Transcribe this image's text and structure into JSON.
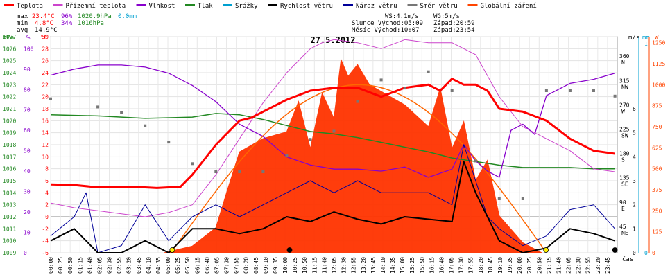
{
  "chart_data": {
    "type": "line",
    "title": "27.5.2012",
    "legend": [
      {
        "label": "Teplota",
        "color": "#ff0000"
      },
      {
        "label": "Přízemní teplota",
        "color": "#cc44cc"
      },
      {
        "label": "Vlhkost",
        "color": "#8800cc"
      },
      {
        "label": "Tlak",
        "color": "#228822"
      },
      {
        "label": "Srážky",
        "color": "#00a0d0"
      },
      {
        "label": "Rychlost větru",
        "color": "#000000"
      },
      {
        "label": "Náraz větru",
        "color": "#000099"
      },
      {
        "label": "Směr větru",
        "color": "#777777"
      },
      {
        "label": "Globální záření",
        "color": "#ff4400"
      }
    ],
    "stats": {
      "max": {
        "label": "max",
        "temp": "23.4°C",
        "hum": "96%",
        "press": "1020.9hPa",
        "rain": "0.0mm"
      },
      "min": {
        "label": "min",
        "temp": "4.8°C",
        "hum": "34%",
        "press": "1016hPa"
      },
      "avg": {
        "label": "avg",
        "temp": "14.9°C"
      }
    },
    "info": {
      "ws": "WS:4.1m/s",
      "wg": "WG:5m/s",
      "sun": "Slunce Východ:05:09",
      "sunset": "Západ:20:59",
      "moon": "Měsíc Východ:10:07",
      "moonset": "Západ:23:54"
    },
    "axes": {
      "hpa": {
        "label": "hPa",
        "ticks": [
          1027,
          1026,
          1025,
          1024,
          1023,
          1022,
          1021,
          1020,
          1019,
          1018,
          1017,
          1016,
          1015,
          1014,
          1013,
          1012,
          1011,
          1010,
          1009
        ]
      },
      "pct": {
        "label": "%",
        "ticks": [
          100,
          90,
          80,
          70,
          60,
          50,
          40,
          30,
          20,
          10,
          0
        ]
      },
      "temp": {
        "label": "°C",
        "ticks": [
          30,
          28,
          26,
          24,
          22,
          20,
          18,
          16,
          14,
          12,
          10,
          8,
          6,
          4,
          2,
          0,
          -2,
          -4,
          -6
        ]
      },
      "ms": {
        "label": "m/s",
        "ticks": [
          6,
          5,
          4,
          3,
          2,
          1,
          0
        ]
      },
      "mm": {
        "label": "mm",
        "ticks": [
          1,
          0
        ]
      },
      "w": {
        "label": "W",
        "ticks": [
          1250,
          1125,
          1000,
          875,
          750,
          625,
          500,
          375,
          250,
          125,
          0
        ]
      },
      "dir": {
        "ticks": [
          {
            "deg": "360",
            "lab": "N"
          },
          {
            "deg": "315",
            "lab": "NW"
          },
          {
            "deg": "270",
            "lab": "W"
          },
          {
            "deg": "225",
            "lab": "SW"
          },
          {
            "deg": "180",
            "lab": "S"
          },
          {
            "deg": "135",
            "lab": "SE"
          },
          {
            "deg": "90",
            "lab": "E"
          },
          {
            "deg": "45",
            "lab": "NE"
          }
        ]
      },
      "x_label": "čas",
      "x_ticks": [
        "00:00",
        "00:25",
        "00:50",
        "01:15",
        "01:40",
        "02:05",
        "02:30",
        "02:55",
        "03:20",
        "03:45",
        "04:10",
        "04:35",
        "05:00",
        "05:25",
        "05:50",
        "06:15",
        "06:40",
        "07:05",
        "07:30",
        "07:55",
        "08:20",
        "08:45",
        "09:10",
        "09:35",
        "10:00",
        "10:25",
        "10:50",
        "11:15",
        "11:40",
        "12:05",
        "12:30",
        "12:55",
        "13:20",
        "13:45",
        "14:10",
        "14:35",
        "15:00",
        "15:25",
        "15:50",
        "16:15",
        "16:40",
        "17:05",
        "17:30",
        "17:55",
        "18:20",
        "18:45",
        "19:10",
        "19:35",
        "20:00",
        "20:25",
        "20:50",
        "21:15",
        "21:40",
        "22:05",
        "22:30",
        "22:55",
        "23:20",
        "23:45"
      ]
    },
    "series": [
      {
        "name": "Teplota",
        "unit": "°C",
        "x_hours": [
          0,
          1,
          2,
          3,
          4,
          4.5,
          5,
          5.5,
          6,
          7,
          8,
          8.5,
          9,
          10,
          11,
          12,
          13,
          14,
          15,
          16,
          16.5,
          17,
          17.5,
          18,
          18.5,
          19,
          20,
          21,
          22,
          23,
          23.9
        ],
        "values": [
          5.4,
          5.3,
          4.9,
          4.9,
          4.9,
          4.8,
          4.9,
          5,
          7,
          12,
          16,
          16.5,
          17.5,
          19.5,
          21,
          21.5,
          21.5,
          20,
          21.5,
          22,
          21,
          23,
          22,
          22,
          21,
          18,
          17.5,
          16,
          13,
          11,
          10.5
        ]
      },
      {
        "name": "Přízemní teplota",
        "unit": "°C",
        "x_hours": [
          0,
          1,
          2,
          3,
          4,
          5,
          6,
          7,
          8,
          9,
          10,
          11,
          11.5,
          12,
          13,
          14,
          15,
          16,
          17,
          17.5,
          18,
          19,
          20,
          21,
          22,
          23,
          23.9
        ],
        "values": [
          2.3,
          1.5,
          1,
          0.5,
          0,
          0.7,
          2,
          7,
          13,
          19,
          24,
          28,
          29,
          29.5,
          29,
          28,
          29.5,
          29,
          29,
          28,
          27,
          20,
          15,
          13,
          11,
          8,
          7.5
        ]
      },
      {
        "name": "Vlhkost",
        "unit": "%",
        "x_hours": [
          0,
          1,
          2,
          3,
          4,
          5,
          6,
          7,
          8,
          9,
          10,
          11,
          12,
          13,
          14,
          15,
          16,
          17,
          17.5,
          18,
          18.5,
          19,
          19.5,
          20,
          20.5,
          21,
          22,
          23,
          23.9
        ],
        "values": [
          87,
          90,
          92,
          92,
          91,
          88,
          82,
          74,
          63,
          57,
          47,
          43,
          41,
          41,
          40,
          42,
          37,
          41,
          53,
          45,
          40,
          37,
          60,
          63,
          58,
          77,
          83,
          85,
          88
        ]
      },
      {
        "name": "Tlak",
        "unit": "hPa",
        "x_hours": [
          0,
          2,
          4,
          6,
          7,
          8,
          9,
          10,
          11,
          12,
          13,
          14,
          15,
          16,
          17,
          18,
          19,
          20,
          21,
          22,
          23,
          23.9
        ],
        "values": [
          1020.5,
          1020.4,
          1020.2,
          1020.3,
          1020.6,
          1020.5,
          1020.1,
          1019.6,
          1019.1,
          1018.9,
          1018.6,
          1018.2,
          1017.8,
          1017.4,
          1016.9,
          1016.6,
          1016.3,
          1016.1,
          1016.1,
          1016.1,
          1016,
          1016
        ]
      },
      {
        "name": "Rychlost větru",
        "unit": "m/s",
        "x_hours": [
          0,
          1,
          2,
          3,
          4,
          5,
          6,
          7,
          8,
          9,
          10,
          11,
          12,
          13,
          14,
          15,
          16,
          17,
          17.5,
          18,
          18.5,
          19,
          20,
          21,
          22,
          23,
          23.9
        ],
        "values": [
          0.5,
          1,
          0,
          0,
          0.5,
          0,
          1,
          1,
          0.8,
          1,
          1.5,
          1.3,
          1.7,
          1.4,
          1.2,
          1.5,
          1.4,
          1.3,
          3.8,
          2.5,
          1.5,
          0.5,
          0,
          0.2,
          1,
          0.8,
          0.5
        ]
      },
      {
        "name": "Náraz větru",
        "unit": "m/s",
        "x_hours": [
          0,
          1,
          1.5,
          2,
          3,
          4,
          5,
          6,
          7,
          8,
          9,
          10,
          11,
          12,
          13,
          14,
          15,
          16,
          17,
          17.5,
          18,
          18.5,
          19,
          20,
          21,
          22,
          23,
          23.9
        ],
        "values": [
          0.7,
          1.5,
          2.5,
          0,
          0.3,
          2,
          0.5,
          1.5,
          2,
          1.5,
          2,
          2.5,
          3,
          2.5,
          3,
          2.5,
          2.5,
          2.5,
          2,
          4.5,
          3,
          1.5,
          1,
          0.3,
          0.7,
          1.8,
          2,
          1
        ]
      },
      {
        "name": "Globální záření",
        "unit": "W",
        "x_hours": [
          4.8,
          6,
          7,
          7.5,
          8,
          9,
          10,
          10.5,
          11,
          11.5,
          12,
          12.3,
          12.6,
          13,
          13.5,
          14,
          15,
          16,
          16.5,
          17,
          17.5,
          18,
          18.5,
          19,
          20,
          20.8
        ],
        "values": [
          0,
          40,
          150,
          380,
          600,
          680,
          720,
          900,
          620,
          950,
          800,
          1150,
          1050,
          1120,
          1000,
          960,
          880,
          750,
          980,
          620,
          780,
          430,
          550,
          220,
          60,
          0
        ]
      },
      {
        "name": "Směr větru",
        "unit": "°",
        "x_hours": [
          0,
          2,
          3,
          4,
          5,
          6,
          7,
          8,
          9,
          10,
          11,
          12,
          13,
          14,
          15,
          16,
          17,
          18,
          19,
          20,
          21,
          22,
          23,
          23.9
        ],
        "values": [
          285,
          270,
          260,
          235,
          205,
          165,
          150,
          150,
          150,
          180,
          210,
          225,
          280,
          320,
          305,
          335,
          300,
          170,
          100,
          100,
          300,
          300,
          300,
          290
        ]
      }
    ]
  }
}
